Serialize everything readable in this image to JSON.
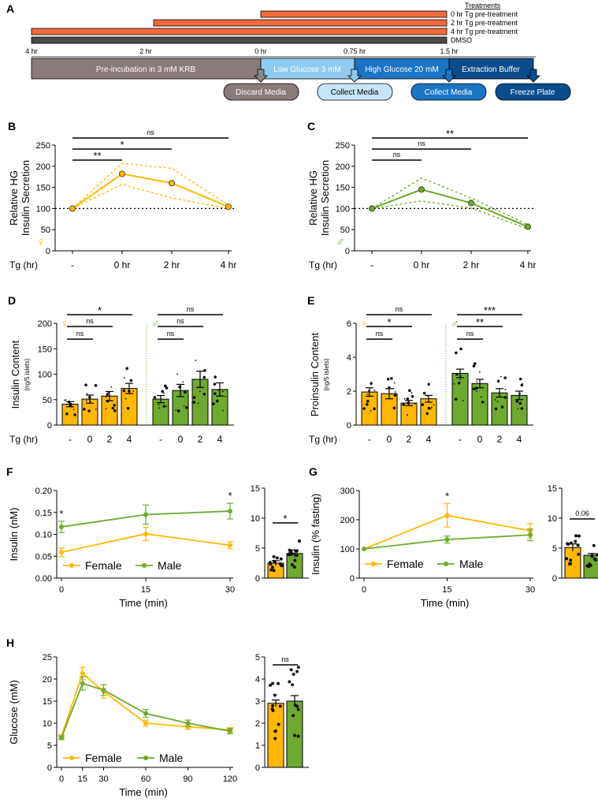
{
  "colors": {
    "female": "#FFB800",
    "male": "#6EAA2E",
    "treatment_bar": "#F26A3C",
    "dmso": "#4A4A4A",
    "preinc": "#8A7B7B",
    "low_glucose": "#8ECBEE",
    "high_glucose": "#1B74C4",
    "extraction": "#0B4C8C"
  },
  "panelA": {
    "letter": "A",
    "treatments_title": "Treatments",
    "treatments": [
      "0 hr Tg pre-treatment",
      "2 hr Tg pre-treatment",
      "4 hr Tg pre-treatment",
      "DMSO"
    ],
    "time_ticks": [
      "4 hr",
      "2 hr",
      "0 hr",
      "0.75 hr",
      "1.5 hr"
    ],
    "phases": [
      "Pre-incubation in 3 mM KRB",
      "Low Glucose 3 mM",
      "High Glucose 20 mM",
      "Extraction Buffer"
    ],
    "actions": [
      "Discard Media",
      "Collect Media",
      "Collect Media",
      "Freeze Plate"
    ]
  },
  "chart_data": [
    {
      "panel": "B",
      "type": "line",
      "sex": "Female",
      "sex_symbol": "♀",
      "ylabel": [
        "Relative HG",
        "Insulin Secretion"
      ],
      "xlabel": "Tg (hr)",
      "categories": [
        "-",
        "0 hr",
        "2 hr",
        "4 hr"
      ],
      "values": [
        100,
        182,
        160,
        104
      ],
      "upper": [
        100,
        207,
        195,
        108
      ],
      "lower": [
        100,
        157,
        125,
        100
      ],
      "ylim": [
        0,
        250
      ],
      "yticks": [
        0,
        50,
        100,
        150,
        200,
        250
      ],
      "reference_line": 100,
      "brackets": [
        {
          "from": 0,
          "to": 1,
          "label": "**"
        },
        {
          "from": 0,
          "to": 2,
          "label": "*"
        },
        {
          "from": 0,
          "to": 3,
          "label": "ns"
        }
      ]
    },
    {
      "panel": "C",
      "type": "line",
      "sex": "Male",
      "sex_symbol": "♂",
      "ylabel": [
        "Relative HG",
        "Insulin Secretion"
      ],
      "xlabel": "Tg (hr)",
      "categories": [
        "-",
        "0 hr",
        "2 hr",
        "4 hr"
      ],
      "values": [
        100,
        145,
        113,
        57
      ],
      "upper": [
        100,
        172,
        125,
        62
      ],
      "lower": [
        100,
        118,
        101,
        52
      ],
      "ylim": [
        0,
        250
      ],
      "yticks": [
        0,
        50,
        100,
        150,
        200,
        250
      ],
      "reference_line": 100,
      "brackets": [
        {
          "from": 0,
          "to": 1,
          "label": "ns"
        },
        {
          "from": 0,
          "to": 2,
          "label": "ns"
        },
        {
          "from": 0,
          "to": 3,
          "label": "**"
        }
      ]
    },
    {
      "panel": "D",
      "type": "bar",
      "ylabel": "Insulin Content",
      "ylabel_sub": "(ng/5 islets)",
      "xlabel": "Tg (hr)",
      "ylim": [
        0,
        200
      ],
      "yticks": [
        0,
        50,
        100,
        150,
        200
      ],
      "groups": [
        {
          "sex": "Female",
          "sex_symbol": "♀",
          "categories": [
            "-",
            "0",
            "2",
            "4"
          ],
          "values": [
            41,
            51,
            57,
            72
          ],
          "sem": [
            5,
            8,
            9,
            10
          ],
          "brackets": [
            {
              "from": 0,
              "to": 1,
              "label": "ns"
            },
            {
              "from": 0,
              "to": 2,
              "label": "ns"
            },
            {
              "from": 0,
              "to": 3,
              "label": "*"
            }
          ]
        },
        {
          "sex": "Male",
          "sex_symbol": "♂",
          "categories": [
            "-",
            "0",
            "2",
            "4"
          ],
          "values": [
            51,
            68,
            90,
            70
          ],
          "sem": [
            7,
            12,
            16,
            13
          ],
          "brackets": [
            {
              "from": 0,
              "to": 1,
              "label": "ns"
            },
            {
              "from": 0,
              "to": 2,
              "label": "ns"
            },
            {
              "from": 0,
              "to": 3,
              "label": "ns"
            }
          ]
        }
      ]
    },
    {
      "panel": "E",
      "type": "bar",
      "ylabel": "Proinsulin Content",
      "ylabel_sub": "(ng/5 islets)",
      "xlabel": "Tg (hr)",
      "ylim": [
        0,
        6
      ],
      "yticks": [
        0,
        2,
        4,
        6
      ],
      "groups": [
        {
          "sex": "Female",
          "sex_symbol": "♀",
          "categories": [
            "-",
            "0",
            "2",
            "4"
          ],
          "values": [
            1.95,
            1.85,
            1.3,
            1.55
          ],
          "sem": [
            0.25,
            0.3,
            0.15,
            0.2
          ],
          "brackets": [
            {
              "from": 0,
              "to": 1,
              "label": "ns"
            },
            {
              "from": 0,
              "to": 2,
              "label": "*"
            },
            {
              "from": 0,
              "to": 3,
              "label": "ns"
            }
          ]
        },
        {
          "sex": "Male",
          "sex_symbol": "♂",
          "categories": [
            "-",
            "0",
            "2",
            "4"
          ],
          "values": [
            3.05,
            2.45,
            1.9,
            1.75
          ],
          "sem": [
            0.25,
            0.25,
            0.25,
            0.25
          ],
          "brackets": [
            {
              "from": 0,
              "to": 1,
              "label": "ns"
            },
            {
              "from": 0,
              "to": 2,
              "label": "**"
            },
            {
              "from": 0,
              "to": 3,
              "label": "***"
            }
          ]
        }
      ]
    },
    {
      "panel": "F",
      "type": "line",
      "ylabel": "Insulin (nM)",
      "xlabel": "Time (min)",
      "x": [
        0,
        15,
        30
      ],
      "xticks": [
        "0",
        "15",
        "30"
      ],
      "ylim": [
        0,
        0.2
      ],
      "yticks": [
        "0.00",
        "0.05",
        "0.10",
        "0.15",
        "0.20"
      ],
      "series": [
        {
          "name": "Female",
          "values": [
            0.059,
            0.101,
            0.075
          ],
          "err": [
            0.01,
            0.015,
            0.008
          ]
        },
        {
          "name": "Male",
          "values": [
            0.117,
            0.145,
            0.153
          ],
          "err": [
            0.013,
            0.022,
            0.018
          ]
        }
      ],
      "significance": [
        {
          "x_index": 0,
          "label": "*"
        },
        {
          "x_index": 2,
          "label": "*"
        }
      ],
      "inset": {
        "type": "bar",
        "ylim": [
          0,
          15
        ],
        "yticks": [
          0,
          5,
          10,
          15
        ],
        "values": [
          2.5,
          4.1
        ],
        "sem": [
          0.4,
          0.6
        ],
        "bracket_label": "*"
      }
    },
    {
      "panel": "G",
      "type": "line",
      "ylabel": "Insulin (% fasting)",
      "xlabel": "Time (min)",
      "x": [
        0,
        15,
        30
      ],
      "xticks": [
        "0",
        "15",
        "30"
      ],
      "ylim": [
        0,
        300
      ],
      "yticks": [
        0,
        100,
        200,
        300
      ],
      "series": [
        {
          "name": "Female",
          "values": [
            100,
            215,
            162
          ],
          "err": [
            0,
            40,
            25
          ]
        },
        {
          "name": "Male",
          "values": [
            100,
            132,
            148
          ],
          "err": [
            0,
            12,
            20
          ]
        }
      ],
      "significance": [
        {
          "x_index": 1,
          "label": "*"
        }
      ],
      "inset": {
        "type": "bar",
        "ylim": [
          0,
          15
        ],
        "yticks": [
          0,
          5,
          10,
          15
        ],
        "values": [
          5.1,
          3.8
        ],
        "sem": [
          0.6,
          0.3
        ],
        "bracket_label": "0.06"
      }
    },
    {
      "panel": "H",
      "type": "line",
      "ylabel": "Glucose (mM)",
      "xlabel": "Time (min)",
      "x": [
        0,
        15,
        30,
        60,
        90,
        120
      ],
      "xticks": [
        "0",
        "15",
        "30",
        "60",
        "90",
        "120"
      ],
      "ylim": [
        0,
        25
      ],
      "yticks": [
        0,
        5,
        10,
        15,
        20,
        25
      ],
      "series": [
        {
          "name": "Female",
          "values": [
            7.0,
            21.3,
            17.2,
            10.0,
            9.2,
            8.5
          ],
          "err": [
            0.4,
            1.4,
            1.5,
            0.7,
            0.6,
            0.5
          ]
        },
        {
          "name": "Male",
          "values": [
            6.7,
            19.0,
            17.5,
            12.2,
            10.0,
            8.2
          ],
          "err": [
            0.4,
            1.5,
            1.2,
            0.9,
            0.7,
            0.6
          ]
        }
      ],
      "inset": {
        "type": "bar",
        "ylim": [
          0,
          5
        ],
        "yticks": [
          0,
          1,
          2,
          3,
          4,
          5
        ],
        "values": [
          2.9,
          3.0
        ],
        "sem": [
          0.15,
          0.25
        ],
        "bracket_label": "ns"
      }
    }
  ]
}
